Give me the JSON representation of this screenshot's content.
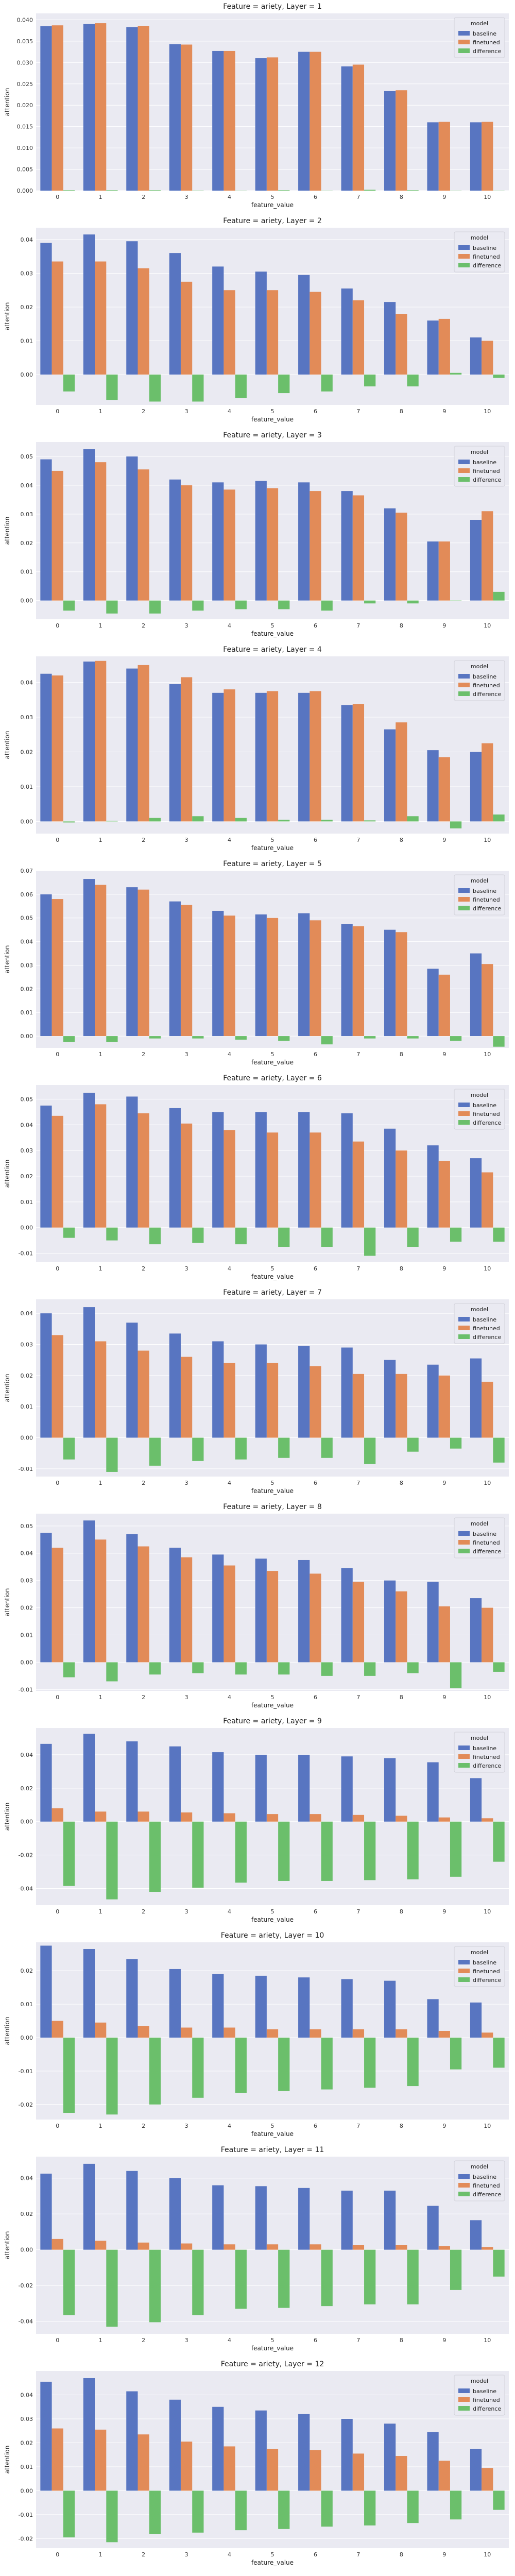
{
  "legend": {
    "title": "model",
    "series": [
      "baseline",
      "finetuned",
      "difference"
    ]
  },
  "colors": {
    "baseline": "#5875c1",
    "finetuned": "#e28b58",
    "difference": "#6bbf6b",
    "plot_bg": "#eaeaf2",
    "grid": "#ffffff"
  },
  "chart_data": [
    {
      "type": "bar",
      "title": "Feature = ariety, Layer = 1",
      "xlabel": "feature_value",
      "ylabel": "attention",
      "categories": [
        "0",
        "1",
        "2",
        "3",
        "4",
        "5",
        "6",
        "7",
        "8",
        "9",
        "10"
      ],
      "ylim": [
        0,
        0.0415
      ],
      "yticks": [
        0.0,
        0.005,
        0.01,
        0.015,
        0.02,
        0.025,
        0.03,
        0.035,
        0.04
      ],
      "ytick_labels": [
        "0.000",
        "0.005",
        "0.010",
        "0.015",
        "0.020",
        "0.025",
        "0.030",
        "0.035",
        "0.040"
      ],
      "series": [
        {
          "name": "baseline",
          "values": [
            0.0385,
            0.039,
            0.0383,
            0.0343,
            0.0327,
            0.031,
            0.0325,
            0.0291,
            0.0233,
            0.016,
            0.016
          ]
        },
        {
          "name": "finetuned",
          "values": [
            0.0387,
            0.0392,
            0.0386,
            0.0342,
            0.0327,
            0.0312,
            0.0325,
            0.0295,
            0.0235,
            0.0161,
            0.0161
          ]
        },
        {
          "name": "difference",
          "values": [
            0.0001,
            0.0001,
            0.0001,
            -0.0001,
            0.0,
            0.0001,
            0.0,
            0.0002,
            0.0001,
            0.0,
            0.0
          ]
        }
      ]
    },
    {
      "type": "bar",
      "title": "Feature = ariety, Layer = 2",
      "xlabel": "feature_value",
      "ylabel": "attention",
      "categories": [
        "0",
        "1",
        "2",
        "3",
        "4",
        "5",
        "6",
        "7",
        "8",
        "9",
        "10"
      ],
      "ylim": [
        -0.009,
        0.0435
      ],
      "yticks": [
        0.0,
        0.01,
        0.02,
        0.03,
        0.04
      ],
      "ytick_labels": [
        "0.00",
        "0.01",
        "0.02",
        "0.03",
        "0.04"
      ],
      "series": [
        {
          "name": "baseline",
          "values": [
            0.039,
            0.0415,
            0.0395,
            0.036,
            0.032,
            0.0305,
            0.0295,
            0.0255,
            0.0215,
            0.016,
            0.011
          ]
        },
        {
          "name": "finetuned",
          "values": [
            0.0335,
            0.0335,
            0.0315,
            0.0275,
            0.025,
            0.025,
            0.0245,
            0.022,
            0.018,
            0.0165,
            0.01
          ]
        },
        {
          "name": "difference",
          "values": [
            -0.005,
            -0.0075,
            -0.008,
            -0.008,
            -0.007,
            -0.0055,
            -0.005,
            -0.0035,
            -0.0035,
            0.0005,
            -0.001
          ]
        }
      ]
    },
    {
      "type": "bar",
      "title": "Feature = ariety, Layer = 3",
      "xlabel": "feature_value",
      "ylabel": "attention",
      "categories": [
        "0",
        "1",
        "2",
        "3",
        "4",
        "5",
        "6",
        "7",
        "8",
        "9",
        "10"
      ],
      "ylim": [
        -0.0065,
        0.055
      ],
      "yticks": [
        0.0,
        0.01,
        0.02,
        0.03,
        0.04,
        0.05
      ],
      "ytick_labels": [
        "0.00",
        "0.01",
        "0.02",
        "0.03",
        "0.04",
        "0.05"
      ],
      "series": [
        {
          "name": "baseline",
          "values": [
            0.049,
            0.0525,
            0.05,
            0.042,
            0.041,
            0.0415,
            0.041,
            0.038,
            0.032,
            0.0205,
            0.028
          ]
        },
        {
          "name": "finetuned",
          "values": [
            0.045,
            0.048,
            0.0455,
            0.04,
            0.0385,
            0.039,
            0.038,
            0.0365,
            0.0305,
            0.0205,
            0.031
          ]
        },
        {
          "name": "difference",
          "values": [
            -0.0035,
            -0.0045,
            -0.0045,
            -0.0035,
            -0.003,
            -0.003,
            -0.0035,
            -0.001,
            -0.001,
            0.0,
            0.003
          ]
        }
      ]
    },
    {
      "type": "bar",
      "title": "Feature = ariety, Layer = 4",
      "xlabel": "feature_value",
      "ylabel": "attention",
      "categories": [
        "0",
        "1",
        "2",
        "3",
        "4",
        "5",
        "6",
        "7",
        "8",
        "9",
        "10"
      ],
      "ylim": [
        -0.0035,
        0.0475
      ],
      "yticks": [
        0.0,
        0.01,
        0.02,
        0.03,
        0.04
      ],
      "ytick_labels": [
        "0.00",
        "0.01",
        "0.02",
        "0.03",
        "0.04"
      ],
      "series": [
        {
          "name": "baseline",
          "values": [
            0.0425,
            0.046,
            0.044,
            0.0395,
            0.037,
            0.037,
            0.037,
            0.0335,
            0.0265,
            0.0205,
            0.02
          ]
        },
        {
          "name": "finetuned",
          "values": [
            0.042,
            0.0462,
            0.045,
            0.0415,
            0.038,
            0.0375,
            0.0375,
            0.0338,
            0.0285,
            0.0185,
            0.0225
          ]
        },
        {
          "name": "difference",
          "values": [
            -0.0003,
            0.0002,
            0.001,
            0.0015,
            0.001,
            0.0005,
            0.0005,
            0.0003,
            0.0015,
            -0.002,
            0.002
          ]
        }
      ]
    },
    {
      "type": "bar",
      "title": "Feature = ariety, Layer = 5",
      "xlabel": "feature_value",
      "ylabel": "attention",
      "categories": [
        "0",
        "1",
        "2",
        "3",
        "4",
        "5",
        "6",
        "7",
        "8",
        "9",
        "10"
      ],
      "ylim": [
        -0.005,
        0.07
      ],
      "yticks": [
        0.0,
        0.01,
        0.02,
        0.03,
        0.04,
        0.05,
        0.06,
        0.07
      ],
      "ytick_labels": [
        "0.00",
        "0.01",
        "0.02",
        "0.03",
        "0.04",
        "0.05",
        "0.06",
        "0.07"
      ],
      "series": [
        {
          "name": "baseline",
          "values": [
            0.06,
            0.0665,
            0.063,
            0.057,
            0.053,
            0.0515,
            0.052,
            0.0475,
            0.045,
            0.0285,
            0.035
          ]
        },
        {
          "name": "finetuned",
          "values": [
            0.058,
            0.064,
            0.062,
            0.0555,
            0.051,
            0.05,
            0.049,
            0.0465,
            0.044,
            0.026,
            0.0305
          ]
        },
        {
          "name": "difference",
          "values": [
            -0.0025,
            -0.0025,
            -0.001,
            -0.001,
            -0.0015,
            -0.002,
            -0.0035,
            -0.001,
            -0.001,
            -0.002,
            -0.0045
          ]
        }
      ]
    },
    {
      "type": "bar",
      "title": "Feature = ariety, Layer = 6",
      "xlabel": "feature_value",
      "ylabel": "attention",
      "categories": [
        "0",
        "1",
        "2",
        "3",
        "4",
        "5",
        "6",
        "7",
        "8",
        "9",
        "10"
      ],
      "ylim": [
        -0.0135,
        0.0555
      ],
      "yticks": [
        -0.01,
        0.0,
        0.01,
        0.02,
        0.03,
        0.04,
        0.05
      ],
      "ytick_labels": [
        "-0.01",
        "0.00",
        "0.01",
        "0.02",
        "0.03",
        "0.04",
        "0.05"
      ],
      "series": [
        {
          "name": "baseline",
          "values": [
            0.0475,
            0.0525,
            0.051,
            0.0465,
            0.045,
            0.045,
            0.045,
            0.0445,
            0.0385,
            0.032,
            0.027
          ]
        },
        {
          "name": "finetuned",
          "values": [
            0.0435,
            0.048,
            0.0445,
            0.0405,
            0.038,
            0.037,
            0.037,
            0.0335,
            0.03,
            0.026,
            0.0215
          ]
        },
        {
          "name": "difference",
          "values": [
            -0.004,
            -0.005,
            -0.0065,
            -0.006,
            -0.0065,
            -0.0075,
            -0.0075,
            -0.011,
            -0.0075,
            -0.0055,
            -0.0055
          ]
        }
      ]
    },
    {
      "type": "bar",
      "title": "Feature = ariety, Layer = 7",
      "xlabel": "feature_value",
      "ylabel": "attention",
      "categories": [
        "0",
        "1",
        "2",
        "3",
        "4",
        "5",
        "6",
        "7",
        "8",
        "9",
        "10"
      ],
      "ylim": [
        -0.0125,
        0.0445
      ],
      "yticks": [
        -0.01,
        0.0,
        0.01,
        0.02,
        0.03,
        0.04
      ],
      "ytick_labels": [
        "-0.01",
        "0.00",
        "0.01",
        "0.02",
        "0.03",
        "0.04"
      ],
      "series": [
        {
          "name": "baseline",
          "values": [
            0.04,
            0.042,
            0.037,
            0.0335,
            0.031,
            0.03,
            0.0295,
            0.029,
            0.025,
            0.0235,
            0.0255
          ]
        },
        {
          "name": "finetuned",
          "values": [
            0.033,
            0.031,
            0.028,
            0.026,
            0.024,
            0.024,
            0.023,
            0.0205,
            0.0205,
            0.02,
            0.018
          ]
        },
        {
          "name": "difference",
          "values": [
            -0.007,
            -0.011,
            -0.009,
            -0.0075,
            -0.007,
            -0.0065,
            -0.0065,
            -0.0085,
            -0.0045,
            -0.0035,
            -0.008
          ]
        }
      ]
    },
    {
      "type": "bar",
      "title": "Feature = ariety, Layer = 8",
      "xlabel": "feature_value",
      "ylabel": "attention",
      "categories": [
        "0",
        "1",
        "2",
        "3",
        "4",
        "5",
        "6",
        "7",
        "8",
        "9",
        "10"
      ],
      "ylim": [
        -0.0105,
        0.0545
      ],
      "yticks": [
        -0.01,
        0.0,
        0.01,
        0.02,
        0.03,
        0.04,
        0.05
      ],
      "ytick_labels": [
        "-0.01",
        "0.00",
        "0.01",
        "0.02",
        "0.03",
        "0.04",
        "0.05"
      ],
      "series": [
        {
          "name": "baseline",
          "values": [
            0.0475,
            0.052,
            0.047,
            0.042,
            0.0395,
            0.038,
            0.0375,
            0.0345,
            0.03,
            0.0295,
            0.0235
          ]
        },
        {
          "name": "finetuned",
          "values": [
            0.042,
            0.045,
            0.0425,
            0.0385,
            0.0355,
            0.0335,
            0.0325,
            0.0295,
            0.026,
            0.0205,
            0.02
          ]
        },
        {
          "name": "difference",
          "values": [
            -0.0055,
            -0.007,
            -0.0045,
            -0.004,
            -0.0045,
            -0.0045,
            -0.005,
            -0.005,
            -0.004,
            -0.0095,
            -0.0035
          ]
        }
      ]
    },
    {
      "type": "bar",
      "title": "Feature = ariety, Layer = 9",
      "xlabel": "feature_value",
      "ylabel": "attention",
      "categories": [
        "0",
        "1",
        "2",
        "3",
        "4",
        "5",
        "6",
        "7",
        "8",
        "9",
        "10"
      ],
      "ylim": [
        -0.05,
        0.056
      ],
      "yticks": [
        -0.04,
        -0.02,
        0.0,
        0.02,
        0.04
      ],
      "ytick_labels": [
        "-0.04",
        "-0.02",
        "0.00",
        "0.02",
        "0.04"
      ],
      "series": [
        {
          "name": "baseline",
          "values": [
            0.0465,
            0.0525,
            0.048,
            0.045,
            0.0415,
            0.04,
            0.04,
            0.039,
            0.038,
            0.0355,
            0.026
          ]
        },
        {
          "name": "finetuned",
          "values": [
            0.008,
            0.006,
            0.006,
            0.0055,
            0.005,
            0.0045,
            0.0045,
            0.004,
            0.0035,
            0.0025,
            0.002
          ]
        },
        {
          "name": "difference",
          "values": [
            -0.0385,
            -0.0465,
            -0.042,
            -0.0395,
            -0.0365,
            -0.0355,
            -0.0355,
            -0.035,
            -0.0345,
            -0.033,
            -0.024
          ]
        }
      ]
    },
    {
      "type": "bar",
      "title": "Feature = ariety, Layer = 10",
      "xlabel": "feature_value",
      "ylabel": "attention",
      "categories": [
        "0",
        "1",
        "2",
        "3",
        "4",
        "5",
        "6",
        "7",
        "8",
        "9",
        "10"
      ],
      "ylim": [
        -0.0245,
        0.0285
      ],
      "yticks": [
        -0.02,
        -0.01,
        0.0,
        0.01,
        0.02
      ],
      "ytick_labels": [
        "-0.02",
        "-0.01",
        "0.00",
        "0.01",
        "0.02"
      ],
      "series": [
        {
          "name": "baseline",
          "values": [
            0.0275,
            0.0265,
            0.0235,
            0.0205,
            0.019,
            0.0185,
            0.018,
            0.0175,
            0.017,
            0.0115,
            0.0105
          ]
        },
        {
          "name": "finetuned",
          "values": [
            0.005,
            0.0045,
            0.0035,
            0.003,
            0.003,
            0.0025,
            0.0025,
            0.0025,
            0.0025,
            0.002,
            0.0015
          ]
        },
        {
          "name": "difference",
          "values": [
            -0.0225,
            -0.023,
            -0.02,
            -0.018,
            -0.0165,
            -0.016,
            -0.0155,
            -0.015,
            -0.0145,
            -0.0095,
            -0.009
          ]
        }
      ]
    },
    {
      "type": "bar",
      "title": "Feature = ariety, Layer = 11",
      "xlabel": "feature_value",
      "ylabel": "attention",
      "categories": [
        "0",
        "1",
        "2",
        "3",
        "4",
        "5",
        "6",
        "7",
        "8",
        "9",
        "10"
      ],
      "ylim": [
        -0.047,
        0.052
      ],
      "yticks": [
        -0.04,
        -0.02,
        0.0,
        0.02,
        0.04
      ],
      "ytick_labels": [
        "-0.04",
        "-0.02",
        "0.00",
        "0.02",
        "0.04"
      ],
      "series": [
        {
          "name": "baseline",
          "values": [
            0.0425,
            0.048,
            0.044,
            0.04,
            0.036,
            0.0355,
            0.0345,
            0.033,
            0.033,
            0.0245,
            0.0165
          ]
        },
        {
          "name": "finetuned",
          "values": [
            0.006,
            0.005,
            0.004,
            0.0035,
            0.003,
            0.003,
            0.003,
            0.0025,
            0.0025,
            0.002,
            0.0015
          ]
        },
        {
          "name": "difference",
          "values": [
            -0.0365,
            -0.043,
            -0.0405,
            -0.0365,
            -0.033,
            -0.0325,
            -0.0315,
            -0.0305,
            -0.0305,
            -0.0225,
            -0.015
          ]
        }
      ]
    },
    {
      "type": "bar",
      "title": "Feature = ariety, Layer = 12",
      "xlabel": "feature_value",
      "ylabel": "attention",
      "categories": [
        "0",
        "1",
        "2",
        "3",
        "4",
        "5",
        "6",
        "7",
        "8",
        "9",
        "10"
      ],
      "ylim": [
        -0.024,
        0.05
      ],
      "yticks": [
        -0.02,
        -0.01,
        0.0,
        0.01,
        0.02,
        0.03,
        0.04
      ],
      "ytick_labels": [
        "-0.02",
        "-0.01",
        "0.00",
        "0.01",
        "0.02",
        "0.03",
        "0.04"
      ],
      "series": [
        {
          "name": "baseline",
          "values": [
            0.0455,
            0.047,
            0.0415,
            0.038,
            0.035,
            0.0335,
            0.032,
            0.03,
            0.028,
            0.0245,
            0.0175
          ]
        },
        {
          "name": "finetuned",
          "values": [
            0.026,
            0.0255,
            0.0235,
            0.0205,
            0.0185,
            0.0175,
            0.017,
            0.0155,
            0.0145,
            0.0125,
            0.0095
          ]
        },
        {
          "name": "difference",
          "values": [
            -0.0195,
            -0.0215,
            -0.018,
            -0.0175,
            -0.0165,
            -0.016,
            -0.015,
            -0.0145,
            -0.0135,
            -0.012,
            -0.008
          ]
        }
      ]
    }
  ]
}
